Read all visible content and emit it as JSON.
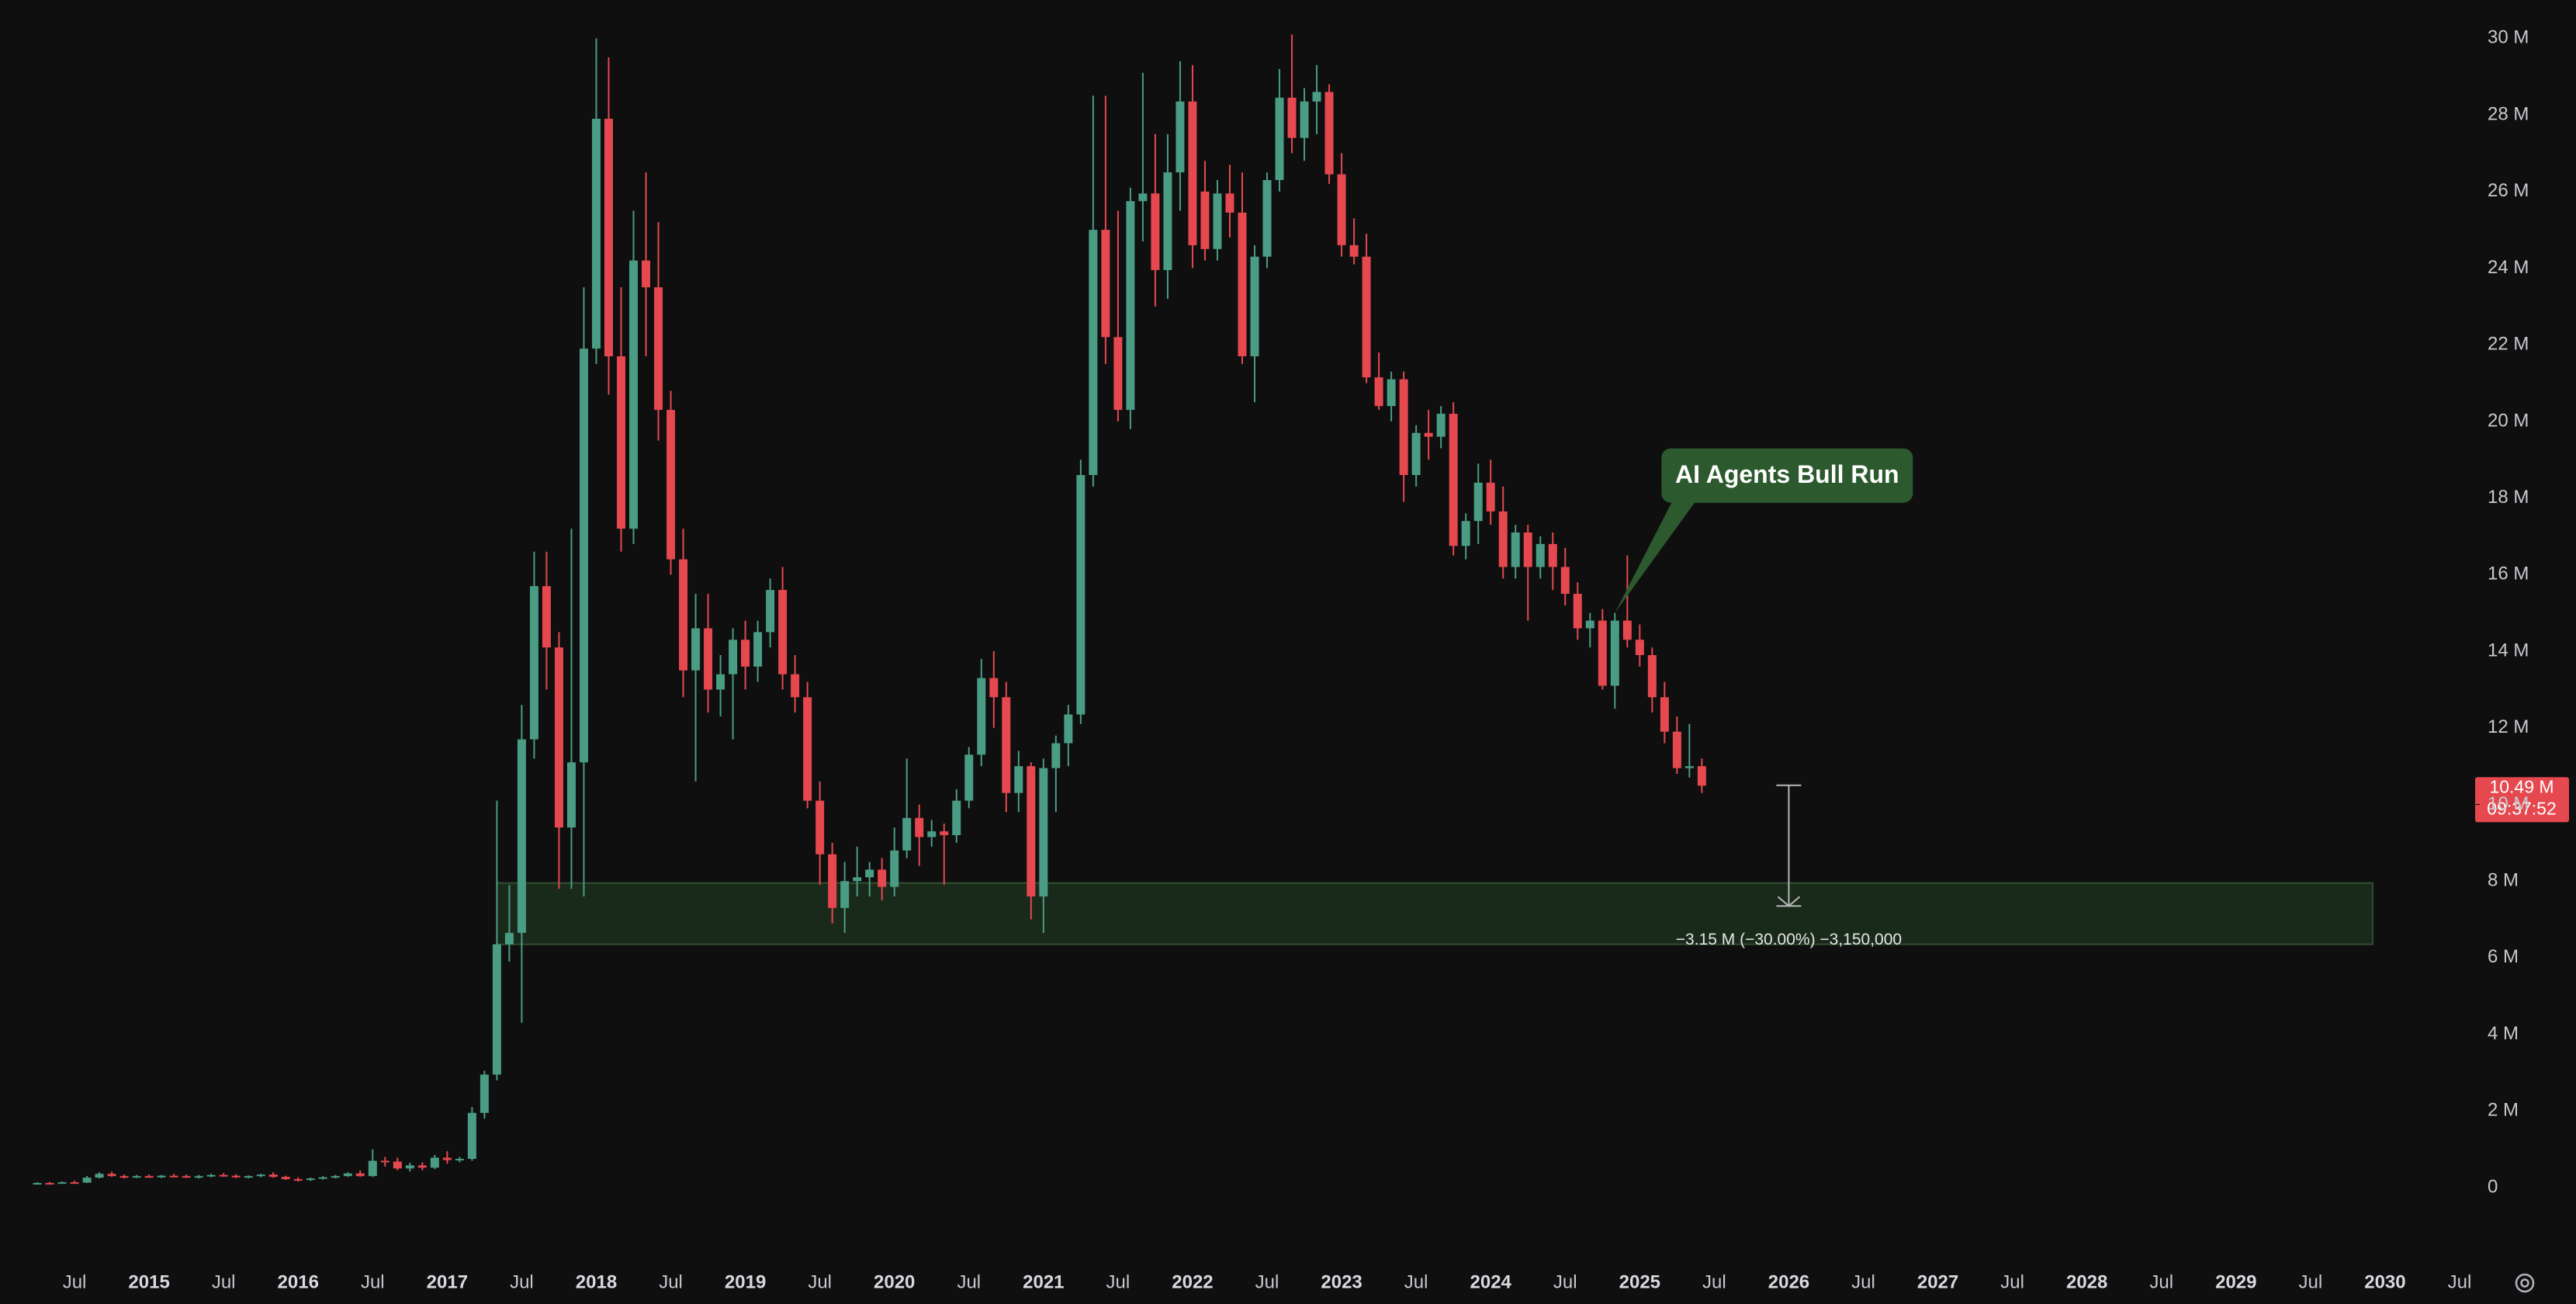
{
  "chart_data": {
    "type": "candlestick",
    "up_color": "#4a9c84",
    "down_color": "#e5484f",
    "x": [
      "2014-04",
      "2014-05",
      "2014-06",
      "2014-07",
      "2014-08",
      "2014-09",
      "2014-10",
      "2014-11",
      "2014-12",
      "2015-01",
      "2015-02",
      "2015-03",
      "2015-04",
      "2015-05",
      "2015-06",
      "2015-07",
      "2015-08",
      "2015-09",
      "2015-10",
      "2015-11",
      "2015-12",
      "2016-01",
      "2016-02",
      "2016-03",
      "2016-04",
      "2016-05",
      "2016-06",
      "2016-07",
      "2016-08",
      "2016-09",
      "2016-10",
      "2016-11",
      "2016-12",
      "2017-01",
      "2017-02",
      "2017-03",
      "2017-04",
      "2017-05",
      "2017-06",
      "2017-07",
      "2017-08",
      "2017-09",
      "2017-10",
      "2017-11",
      "2017-12",
      "2018-01",
      "2018-02",
      "2018-03",
      "2018-04",
      "2018-05",
      "2018-06",
      "2018-07",
      "2018-08",
      "2018-09",
      "2018-10",
      "2018-11",
      "2018-12",
      "2019-01",
      "2019-02",
      "2019-03",
      "2019-04",
      "2019-05",
      "2019-06",
      "2019-07",
      "2019-08",
      "2019-09",
      "2019-10",
      "2019-11",
      "2019-12",
      "2020-01",
      "2020-02",
      "2020-03",
      "2020-04",
      "2020-05",
      "2020-06",
      "2020-07",
      "2020-08",
      "2020-09",
      "2020-10",
      "2020-11",
      "2020-12",
      "2021-01",
      "2021-02",
      "2021-03",
      "2021-04",
      "2021-05",
      "2021-06",
      "2021-07",
      "2021-08",
      "2021-09",
      "2021-10",
      "2021-11",
      "2021-12",
      "2022-01",
      "2022-02",
      "2022-03",
      "2022-04",
      "2022-05",
      "2022-06",
      "2022-07",
      "2022-08",
      "2022-09",
      "2022-10",
      "2022-11",
      "2022-12",
      "2023-01",
      "2023-02",
      "2023-03",
      "2023-04",
      "2023-05",
      "2023-06",
      "2023-07",
      "2023-08",
      "2023-09",
      "2023-10",
      "2023-11",
      "2023-12",
      "2024-01",
      "2024-02",
      "2024-03",
      "2024-04",
      "2024-05",
      "2024-06",
      "2024-07",
      "2024-08",
      "2024-09",
      "2024-10",
      "2024-11",
      "2024-12",
      "2025-01",
      "2025-02",
      "2025-03",
      "2025-04",
      "2025-05",
      "2025-06"
    ],
    "open": [
      0.1,
      0.12,
      0.11,
      0.14,
      0.13,
      0.26,
      0.36,
      0.3,
      0.28,
      0.3,
      0.29,
      0.31,
      0.3,
      0.28,
      0.3,
      0.33,
      0.31,
      0.28,
      0.3,
      0.34,
      0.28,
      0.22,
      0.2,
      0.24,
      0.27,
      0.3,
      0.37,
      0.3,
      0.7,
      0.68,
      0.5,
      0.58,
      0.52,
      0.78,
      0.72,
      0.75,
      1.95,
      2.95,
      6.35,
      6.65,
      11.7,
      15.7,
      14.1,
      9.4,
      11.1,
      21.9,
      27.9,
      21.7,
      17.2,
      24.2,
      23.5,
      20.3,
      16.4,
      13.5,
      14.6,
      13.0,
      13.4,
      14.3,
      13.6,
      14.5,
      15.6,
      13.4,
      12.8,
      10.1,
      8.7,
      7.3,
      8.0,
      8.1,
      8.3,
      7.85,
      8.8,
      9.65,
      9.15,
      9.3,
      9.2,
      10.1,
      11.3,
      13.3,
      12.8,
      10.3,
      11.0,
      7.6,
      10.95,
      11.6,
      12.35,
      18.6,
      25.0,
      22.2,
      20.3,
      25.75,
      25.95,
      23.95,
      26.5,
      28.35,
      26.0,
      24.5,
      25.95,
      25.45,
      21.7,
      24.3,
      26.3,
      28.45,
      27.4,
      28.35,
      28.6,
      26.45,
      24.6,
      24.3,
      21.15,
      20.4,
      21.1,
      18.6,
      19.7,
      19.6,
      20.2,
      16.75,
      17.4,
      18.4,
      17.65,
      16.2,
      17.1,
      16.2,
      16.8,
      16.2,
      15.5,
      14.6,
      14.8,
      13.1,
      14.8,
      14.3,
      13.9,
      12.8,
      11.9,
      10.95,
      11.0
    ],
    "high": [
      0.14,
      0.15,
      0.16,
      0.18,
      0.3,
      0.4,
      0.42,
      0.34,
      0.33,
      0.34,
      0.33,
      0.36,
      0.34,
      0.33,
      0.36,
      0.38,
      0.35,
      0.32,
      0.36,
      0.4,
      0.31,
      0.27,
      0.26,
      0.3,
      0.33,
      0.4,
      0.45,
      1.0,
      0.8,
      0.78,
      0.65,
      0.66,
      0.85,
      0.95,
      0.8,
      2.1,
      3.05,
      10.1,
      7.9,
      12.6,
      16.6,
      16.6,
      14.5,
      17.2,
      23.5,
      30.0,
      29.5,
      23.5,
      25.5,
      26.5,
      25.2,
      20.8,
      17.2,
      15.5,
      15.5,
      13.9,
      14.6,
      14.8,
      14.8,
      15.9,
      16.2,
      13.9,
      13.2,
      10.6,
      9.0,
      8.5,
      8.9,
      8.5,
      8.6,
      9.4,
      11.2,
      10.0,
      9.6,
      9.5,
      10.4,
      11.5,
      13.8,
      14.0,
      13.2,
      11.4,
      11.1,
      11.2,
      11.8,
      12.6,
      19.0,
      28.5,
      28.5,
      25.5,
      26.1,
      29.1,
      27.5,
      27.5,
      29.4,
      29.3,
      26.8,
      26.3,
      26.7,
      26.5,
      24.6,
      26.5,
      29.2,
      30.1,
      28.7,
      29.3,
      28.8,
      27.0,
      25.3,
      24.9,
      21.8,
      21.3,
      21.3,
      19.9,
      20.3,
      20.4,
      20.5,
      17.6,
      18.9,
      19.0,
      18.3,
      17.3,
      17.3,
      17.0,
      17.1,
      16.7,
      15.8,
      15.0,
      15.1,
      15.0,
      16.5,
      14.7,
      14.1,
      13.2,
      12.3,
      12.1,
      11.2
    ],
    "low": [
      0.08,
      0.1,
      0.1,
      0.12,
      0.12,
      0.24,
      0.28,
      0.24,
      0.25,
      0.26,
      0.25,
      0.27,
      0.26,
      0.24,
      0.27,
      0.28,
      0.25,
      0.24,
      0.27,
      0.26,
      0.2,
      0.16,
      0.17,
      0.21,
      0.24,
      0.28,
      0.28,
      0.28,
      0.55,
      0.45,
      0.42,
      0.45,
      0.48,
      0.62,
      0.66,
      0.7,
      1.8,
      2.8,
      5.9,
      4.3,
      11.2,
      13.0,
      7.8,
      7.8,
      7.6,
      21.5,
      20.7,
      16.6,
      16.8,
      21.7,
      19.5,
      16.0,
      12.8,
      10.6,
      12.4,
      12.3,
      11.7,
      13.0,
      13.2,
      14.1,
      13.0,
      12.4,
      9.9,
      7.9,
      6.9,
      6.65,
      7.6,
      7.6,
      7.5,
      7.6,
      8.6,
      8.4,
      8.9,
      7.9,
      9.0,
      9.9,
      11.0,
      12.0,
      9.8,
      9.8,
      7.0,
      6.65,
      9.8,
      11.0,
      12.1,
      18.3,
      21.5,
      20.0,
      19.8,
      24.7,
      23.0,
      23.2,
      25.5,
      24.0,
      24.2,
      24.2,
      24.8,
      21.5,
      20.5,
      24.0,
      26.0,
      27.0,
      26.8,
      27.5,
      26.2,
      24.3,
      24.1,
      21.0,
      20.3,
      20.0,
      17.9,
      18.3,
      19.0,
      19.3,
      16.5,
      16.4,
      16.8,
      17.3,
      15.9,
      15.9,
      14.8,
      15.9,
      15.6,
      15.2,
      14.3,
      14.1,
      13.0,
      12.5,
      14.1,
      13.6,
      12.4,
      11.6,
      10.8,
      10.7,
      10.3
    ],
    "close": [
      0.12,
      0.11,
      0.14,
      0.13,
      0.26,
      0.36,
      0.3,
      0.28,
      0.3,
      0.29,
      0.31,
      0.3,
      0.28,
      0.3,
      0.33,
      0.31,
      0.28,
      0.3,
      0.34,
      0.28,
      0.22,
      0.2,
      0.24,
      0.27,
      0.3,
      0.37,
      0.3,
      0.7,
      0.68,
      0.5,
      0.58,
      0.52,
      0.78,
      0.72,
      0.75,
      1.95,
      2.95,
      6.35,
      6.65,
      11.7,
      15.7,
      14.1,
      9.4,
      11.1,
      21.9,
      27.9,
      21.7,
      17.2,
      24.2,
      23.5,
      20.3,
      16.4,
      13.5,
      14.6,
      13.0,
      13.4,
      14.3,
      13.6,
      14.5,
      15.6,
      13.4,
      12.8,
      10.1,
      8.7,
      7.3,
      8.0,
      8.1,
      8.3,
      7.85,
      8.8,
      9.65,
      9.15,
      9.3,
      9.2,
      10.1,
      11.3,
      13.3,
      12.8,
      10.3,
      11.0,
      7.6,
      10.95,
      11.6,
      12.35,
      18.6,
      25.0,
      22.2,
      20.3,
      25.75,
      25.95,
      23.95,
      26.5,
      28.35,
      24.6,
      24.5,
      25.95,
      25.45,
      21.7,
      24.3,
      26.3,
      28.45,
      27.4,
      28.35,
      28.6,
      26.45,
      24.6,
      24.3,
      21.15,
      20.4,
      21.1,
      18.6,
      19.7,
      19.6,
      20.2,
      16.75,
      17.4,
      18.4,
      17.65,
      16.2,
      17.1,
      16.2,
      16.8,
      16.2,
      15.5,
      14.6,
      14.8,
      13.1,
      14.8,
      14.3,
      13.9,
      12.8,
      11.9,
      10.95,
      11.0,
      10.49
    ],
    "xlim": [
      "2014-01",
      "2030-08"
    ],
    "xticks": [
      {
        "value": "2014-07",
        "label": "Jul"
      },
      {
        "value": "2015-01",
        "label": "2015"
      },
      {
        "value": "2015-07",
        "label": "Jul"
      },
      {
        "value": "2016-01",
        "label": "2016"
      },
      {
        "value": "2016-07",
        "label": "Jul"
      },
      {
        "value": "2017-01",
        "label": "2017"
      },
      {
        "value": "2017-07",
        "label": "Jul"
      },
      {
        "value": "2018-01",
        "label": "2018"
      },
      {
        "value": "2018-07",
        "label": "Jul"
      },
      {
        "value": "2019-01",
        "label": "2019"
      },
      {
        "value": "2019-07",
        "label": "Jul"
      },
      {
        "value": "2020-01",
        "label": "2020"
      },
      {
        "value": "2020-07",
        "label": "Jul"
      },
      {
        "value": "2021-01",
        "label": "2021"
      },
      {
        "value": "2021-07",
        "label": "Jul"
      },
      {
        "value": "2022-01",
        "label": "2022"
      },
      {
        "value": "2022-07",
        "label": "Jul"
      },
      {
        "value": "2023-01",
        "label": "2023"
      },
      {
        "value": "2023-07",
        "label": "Jul"
      },
      {
        "value": "2024-01",
        "label": "2024"
      },
      {
        "value": "2024-07",
        "label": "Jul"
      },
      {
        "value": "2025-01",
        "label": "2025"
      },
      {
        "value": "2025-07",
        "label": "Jul"
      },
      {
        "value": "2026-01",
        "label": "2026"
      },
      {
        "value": "2026-07",
        "label": "Jul"
      },
      {
        "value": "2027-01",
        "label": "2027"
      },
      {
        "value": "2027-07",
        "label": "Jul"
      },
      {
        "value": "2028-01",
        "label": "2028"
      },
      {
        "value": "2028-07",
        "label": "Jul"
      },
      {
        "value": "2029-01",
        "label": "2029"
      },
      {
        "value": "2029-07",
        "label": "Jul"
      },
      {
        "value": "2030-01",
        "label": "2030"
      },
      {
        "value": "2030-07",
        "label": "Jul"
      }
    ],
    "ylim": [
      -1.6,
      31.0
    ],
    "yticks": [
      0,
      {
        "value": 2,
        "label": "2 M"
      },
      {
        "value": 4,
        "label": "4 M"
      },
      {
        "value": 6,
        "label": "6 M"
      },
      {
        "value": 8,
        "label": "8 M"
      },
      {
        "value": 10,
        "label": "10 M"
      },
      {
        "value": 12,
        "label": "12 M"
      },
      {
        "value": 14,
        "label": "14 M"
      },
      {
        "value": 16,
        "label": "16 M"
      },
      {
        "value": 18,
        "label": "18 M"
      },
      {
        "value": 20,
        "label": "20 M"
      },
      {
        "value": 22,
        "label": "22 M"
      },
      {
        "value": 24,
        "label": "24 M"
      },
      {
        "value": 26,
        "label": "26 M"
      },
      {
        "value": 28,
        "label": "28 M"
      },
      {
        "value": 30,
        "label": "30 M"
      }
    ],
    "grid": false,
    "zone": {
      "from": "2017-05",
      "to": "2029-12",
      "low": 6.35,
      "high": 7.95,
      "color": "#1a2a1a",
      "border": "#2f4f32"
    },
    "measure": {
      "x": "2026-01",
      "from": 10.5,
      "to": 7.35,
      "label": "−3.15 M (−30.00%) −3,150,000"
    },
    "annotation": {
      "text": "AI Agents Bull Run",
      "x": "2024-11",
      "y": 15.0,
      "color": "#2c5a2e"
    },
    "price_tag": {
      "value": 10.49,
      "label": "10.49 M",
      "countdown": "09:37:52"
    }
  }
}
